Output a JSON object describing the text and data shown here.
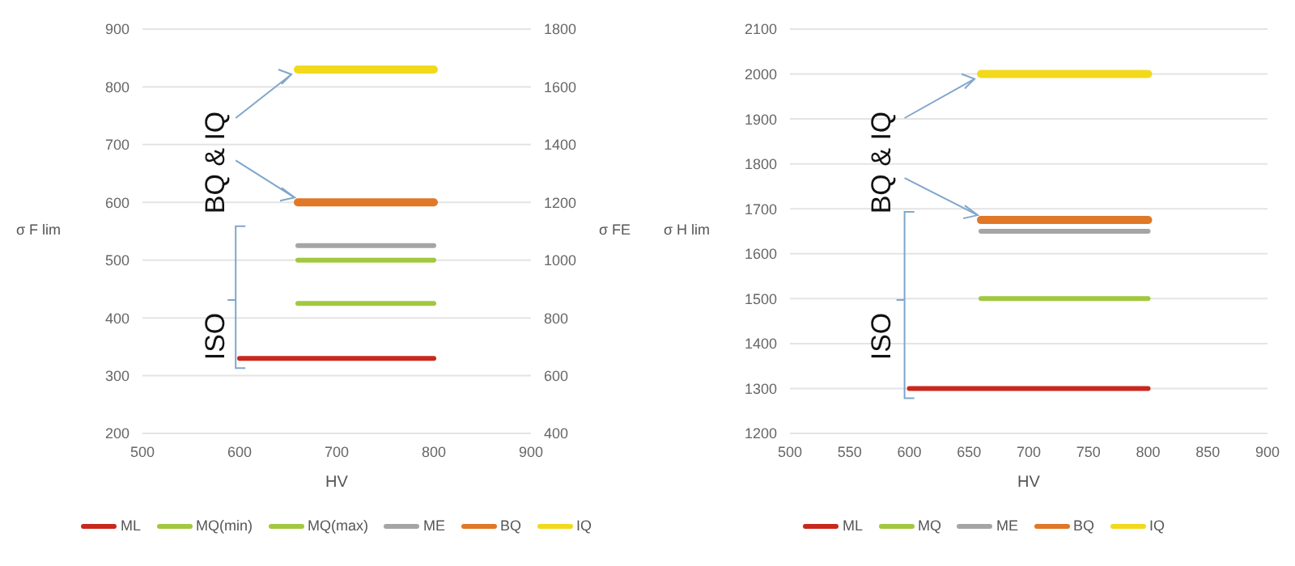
{
  "chart_data": [
    {
      "type": "line",
      "xlabel": "HV",
      "ylabel": "σ F lim",
      "y2label": "σ FE",
      "xlim": [
        500,
        900
      ],
      "xticks": [
        500,
        600,
        700,
        800,
        900
      ],
      "ylim": [
        200,
        900
      ],
      "yticks": [
        200,
        300,
        400,
        500,
        600,
        700,
        800,
        900
      ],
      "y2lim": [
        400,
        1800
      ],
      "y2ticks": [
        400,
        600,
        800,
        1000,
        1200,
        1400,
        1600,
        1800
      ],
      "grid": "y",
      "legend": "bottom",
      "marker": "none",
      "line_style": "solid",
      "annotations": [
        {
          "text": "BQ & IQ",
          "x": 660,
          "y": 830
        },
        "ISO"
      ],
      "series": [
        {
          "name": "ML",
          "color": "#c8281e",
          "x": [
            600,
            800
          ],
          "values": [
            330,
            330
          ]
        },
        {
          "name": "MQ(min)",
          "color": "#a2c840",
          "x": [
            660,
            800
          ],
          "values": [
            425,
            425
          ]
        },
        {
          "name": "MQ(max)",
          "color": "#a2c840",
          "x": [
            660,
            800
          ],
          "values": [
            500,
            500
          ]
        },
        {
          "name": "ME",
          "color": "#a5a5a5",
          "x": [
            660,
            800
          ],
          "values": [
            525,
            525
          ]
        },
        {
          "name": "BQ",
          "color": "#e07828",
          "x": [
            660,
            800
          ],
          "values": [
            600,
            600
          ]
        },
        {
          "name": "IQ",
          "color": "#f2d91c",
          "x": [
            660,
            800
          ],
          "values": [
            830,
            830
          ]
        }
      ]
    },
    {
      "type": "line",
      "xlabel": "HV",
      "ylabel": "σ H lim",
      "xlim": [
        500,
        900
      ],
      "xticks": [
        500,
        550,
        600,
        650,
        700,
        750,
        800,
        850,
        900
      ],
      "ylim": [
        1200,
        2100
      ],
      "yticks": [
        1200,
        1300,
        1400,
        1500,
        1600,
        1700,
        1800,
        1900,
        2000,
        2100
      ],
      "grid": "y",
      "legend": "bottom",
      "marker": "none",
      "line_style": "solid",
      "annotations": [
        {
          "text": "BQ & IQ",
          "x": 660,
          "y": 2000
        },
        "ISO"
      ],
      "series": [
        {
          "name": "ML",
          "color": "#c8281e",
          "x": [
            600,
            800
          ],
          "values": [
            1300,
            1300
          ]
        },
        {
          "name": "MQ",
          "color": "#a2c840",
          "x": [
            660,
            800
          ],
          "values": [
            1500,
            1500
          ]
        },
        {
          "name": "ME",
          "color": "#a5a5a5",
          "x": [
            660,
            800
          ],
          "values": [
            1650,
            1650
          ]
        },
        {
          "name": "BQ",
          "color": "#e07828",
          "x": [
            660,
            800
          ],
          "values": [
            1675,
            1675
          ]
        },
        {
          "name": "IQ",
          "color": "#f2d91c",
          "x": [
            660,
            800
          ],
          "values": [
            2000,
            2000
          ]
        }
      ]
    }
  ]
}
